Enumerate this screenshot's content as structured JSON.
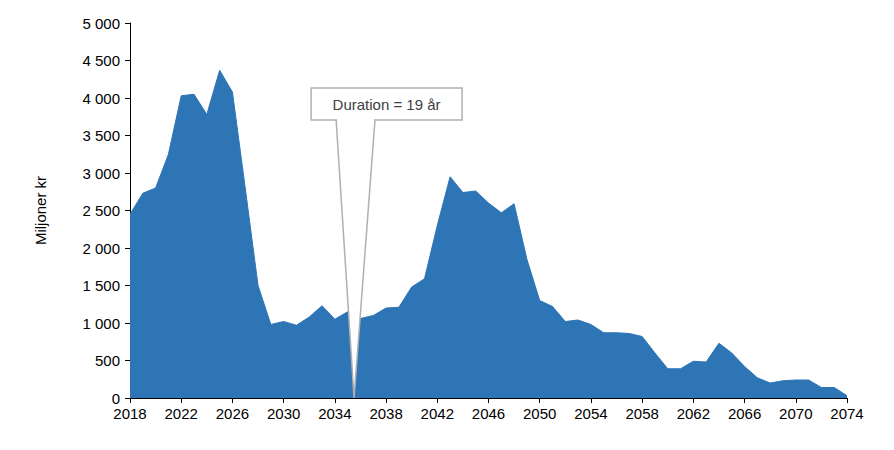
{
  "chart_data": {
    "type": "area",
    "y_label": "Miljoner kr",
    "color": "#2E75B6",
    "grid": false,
    "annotations": [
      {
        "text": "Duration = 19 år",
        "x": 2035.5
      }
    ],
    "x": [
      2018,
      2019,
      2020,
      2021,
      2022,
      2023,
      2024,
      2025,
      2026,
      2027,
      2028,
      2029,
      2030,
      2031,
      2032,
      2033,
      2034,
      2035,
      2036,
      2037,
      2038,
      2039,
      2040,
      2041,
      2042,
      2043,
      2044,
      2045,
      2046,
      2047,
      2048,
      2049,
      2050,
      2051,
      2052,
      2053,
      2054,
      2055,
      2056,
      2057,
      2058,
      2059,
      2060,
      2061,
      2062,
      2063,
      2064,
      2065,
      2066,
      2067,
      2068,
      2069,
      2070,
      2071,
      2072,
      2073,
      2074
    ],
    "values": [
      2450,
      2730,
      2800,
      3250,
      4030,
      4050,
      3780,
      4370,
      4080,
      2800,
      1500,
      980,
      1020,
      970,
      1080,
      1230,
      1050,
      1150,
      1060,
      1100,
      1200,
      1210,
      1480,
      1590,
      2300,
      2950,
      2740,
      2760,
      2600,
      2470,
      2590,
      1850,
      1300,
      1220,
      1020,
      1040,
      980,
      870,
      870,
      860,
      820,
      600,
      390,
      390,
      490,
      480,
      730,
      600,
      420,
      270,
      200,
      230,
      240,
      240,
      140,
      140,
      30
    ],
    "xlim": [
      2018,
      2074
    ],
    "xticks": [
      2018,
      2022,
      2026,
      2030,
      2034,
      2038,
      2042,
      2046,
      2050,
      2054,
      2058,
      2062,
      2066,
      2070,
      2074
    ],
    "ylim": [
      0,
      5000
    ],
    "yticks": [
      0,
      500,
      {
        "value": 1000,
        "label": "1 000"
      },
      {
        "value": 1500,
        "label": "1 500"
      },
      {
        "value": 2000,
        "label": "2 000"
      },
      {
        "value": 2500,
        "label": "2 500"
      },
      {
        "value": 3000,
        "label": "3 000"
      },
      {
        "value": 3500,
        "label": "3 500"
      },
      {
        "value": 4000,
        "label": "4 000"
      },
      {
        "value": 4500,
        "label": "4 500"
      },
      {
        "value": 5000,
        "label": "5 000"
      }
    ]
  }
}
